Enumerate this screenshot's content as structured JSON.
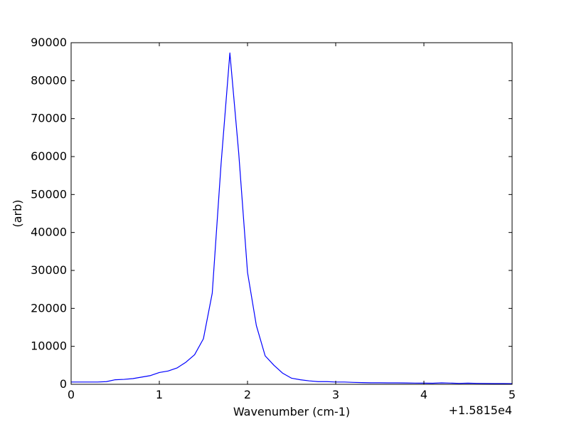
{
  "chart_data": {
    "type": "line",
    "title": "",
    "xlabel": "Wavenumber (cm-1)",
    "ylabel": "(arb)",
    "x_offset_label": "+1.5815e4",
    "xlim": [
      0,
      5
    ],
    "ylim": [
      0,
      90000
    ],
    "x_ticks": [
      0,
      1,
      2,
      3,
      4,
      5
    ],
    "y_ticks": [
      0,
      10000,
      20000,
      30000,
      40000,
      50000,
      60000,
      70000,
      80000,
      90000
    ],
    "grid": false,
    "legend": "none",
    "line_color": "#0000ff",
    "series": [
      {
        "x": [
          0.0,
          0.1,
          0.2,
          0.3,
          0.4,
          0.5,
          0.6,
          0.7,
          0.8,
          0.9,
          1.0,
          1.1,
          1.2,
          1.3,
          1.4,
          1.5,
          1.6,
          1.7,
          1.8,
          1.9,
          2.0,
          2.1,
          2.2,
          2.3,
          2.4,
          2.5,
          2.6,
          2.7,
          2.8,
          2.9,
          3.0,
          3.1,
          3.2,
          3.3,
          3.4,
          3.5,
          3.6,
          3.7,
          3.8,
          3.9,
          4.0,
          4.1,
          4.2,
          4.3,
          4.4,
          4.5,
          4.6,
          4.7,
          4.8,
          4.9,
          5.0
        ],
        "values": [
          600,
          600,
          600,
          600,
          700,
          1200,
          1300,
          1500,
          1900,
          2300,
          3100,
          3500,
          4300,
          5800,
          7800,
          12000,
          24000,
          58000,
          87300,
          61000,
          29500,
          15500,
          7500,
          5000,
          2900,
          1600,
          1200,
          900,
          700,
          700,
          600,
          600,
          500,
          450,
          400,
          400,
          380,
          380,
          350,
          320,
          300,
          280,
          380,
          320,
          250,
          300,
          250,
          220,
          200,
          200,
          180
        ]
      }
    ]
  }
}
